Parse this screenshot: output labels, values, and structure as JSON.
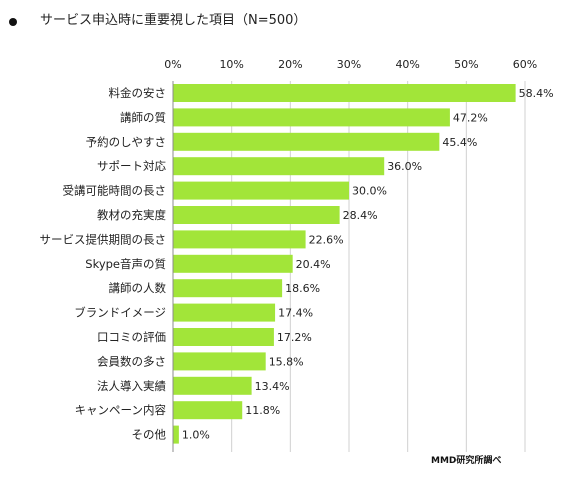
{
  "header": {
    "title": "サービス申込時に重要視した項目（N=500）"
  },
  "footer": {
    "source": "MMD研究所調べ"
  },
  "colors": {
    "bar": "#a2e539",
    "gridline": "#d0d0d0",
    "axis": "#8c8c8c",
    "text": "#222222"
  },
  "chart_data": {
    "type": "bar",
    "orientation": "horizontal",
    "title": "サービス申込時に重要視した項目（N=500）",
    "categories": [
      "料金の安さ",
      "講師の質",
      "予約のしやすさ",
      "サポート対応",
      "受講可能時間の長さ",
      "教材の充実度",
      "サービス提供期間の長さ",
      "Skype音声の質",
      "講師の人数",
      "ブランドイメージ",
      "口コミの評価",
      "会員数の多さ",
      "法人導入実績",
      "キャンペーン内容",
      "その他"
    ],
    "values": [
      58.4,
      47.2,
      45.4,
      36.0,
      30.0,
      28.4,
      22.6,
      20.4,
      18.6,
      17.4,
      17.2,
      15.8,
      13.4,
      11.8,
      1.0
    ],
    "data_labels": [
      "58.4%",
      "47.2%",
      "45.4%",
      "36.0%",
      "30.0%",
      "28.4%",
      "22.6%",
      "20.4%",
      "18.6%",
      "17.4%",
      "17.2%",
      "15.8%",
      "13.4%",
      "11.8%",
      "1.0%"
    ],
    "xlim": [
      0,
      60
    ],
    "ticks": [
      0,
      10,
      20,
      30,
      40,
      50,
      60
    ],
    "tick_labels": [
      "0%",
      "10%",
      "20%",
      "30%",
      "40%",
      "50%",
      "60%"
    ],
    "tick_position": "top",
    "grid": true,
    "legend": "none"
  }
}
